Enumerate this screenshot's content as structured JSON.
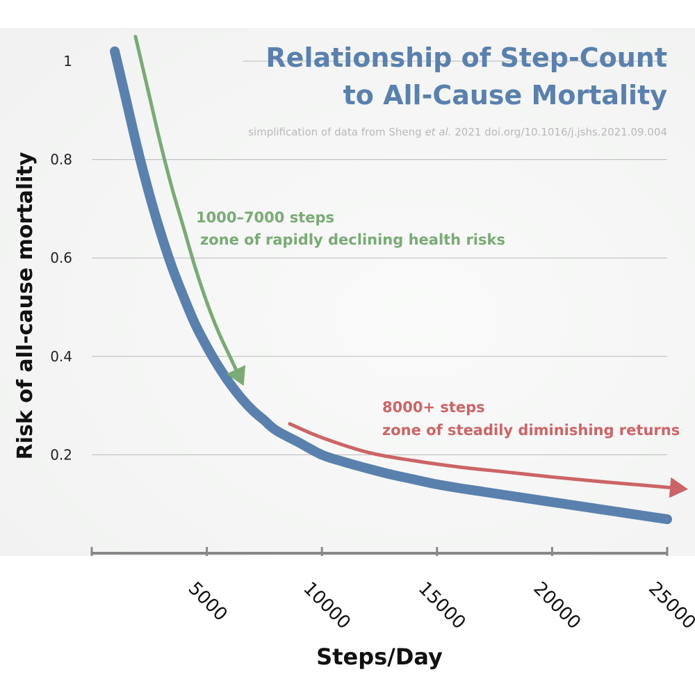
{
  "colors": {
    "background_panel": "#f7f8f7",
    "curve": "#5a80ad",
    "title": "#5a80ad",
    "source_note": "#b8b8b8",
    "green_zone": "#7aaa75",
    "red_zone": "#cc6467",
    "gridline": "#b9b9b9",
    "axis": "#888888",
    "text_dark": "#111111"
  },
  "chart_data": {
    "type": "line",
    "title_lines": [
      "Relationship of Step-Count",
      "to All-Cause Mortality"
    ],
    "subtitle": {
      "before": "simplification of data from Sheng ",
      "italic": "et al.",
      "after": " 2021 doi.org/10.1016/j.jshs.2021.09.004"
    },
    "xlabel": "Steps/Day",
    "ylabel": "Risk of all-cause mortality",
    "x_ticks": [
      5000,
      10000,
      15000,
      20000,
      25000
    ],
    "x_tick_labels": [
      "5000",
      "10000",
      "15000",
      "20000",
      "25000"
    ],
    "y_ticks": [
      0.2,
      0.4,
      0.6,
      0.8,
      1
    ],
    "y_tick_labels": [
      "0.2",
      "0.4",
      "0.6",
      "0.8",
      "1"
    ],
    "xlim": [
      0,
      25000
    ],
    "ylim": [
      0,
      1.05
    ],
    "grid": "horizontal",
    "series": [
      {
        "x": [
          1000,
          1500,
          2000,
          2500,
          3000,
          3500,
          4000,
          4500,
          5000,
          5500,
          6000,
          6500,
          7000,
          7500,
          8000,
          9000,
          10000,
          11000,
          12000,
          13000,
          14000,
          15000,
          16000,
          17000,
          18000,
          19000,
          20000,
          21000,
          22000,
          23000,
          24000,
          25000
        ],
        "y": [
          1.02,
          0.92,
          0.82,
          0.73,
          0.65,
          0.58,
          0.52,
          0.465,
          0.42,
          0.38,
          0.345,
          0.315,
          0.29,
          0.27,
          0.25,
          0.225,
          0.2,
          0.185,
          0.172,
          0.16,
          0.15,
          0.14,
          0.132,
          0.125,
          0.118,
          0.111,
          0.104,
          0.097,
          0.09,
          0.083,
          0.076,
          0.069
        ]
      }
    ],
    "annotations": [
      {
        "id": "rapid-decline",
        "lines": [
          "1000–7000 steps",
          "zone of rapidly declining health risks"
        ],
        "arrow_x": [
          1900,
          2500,
          3000,
          3500,
          4000,
          4500,
          5000,
          5500,
          6000,
          6300
        ],
        "arrow_y": [
          1.05,
          0.93,
          0.83,
          0.74,
          0.66,
          0.58,
          0.51,
          0.45,
          0.4,
          0.37
        ]
      },
      {
        "id": "diminishing-returns",
        "lines": [
          "8000+ steps",
          "zone of steadily diminishing returns"
        ],
        "arrow_x": [
          8600,
          10000,
          12000,
          14000,
          16000,
          18000,
          20000,
          22000,
          24000,
          25200
        ],
        "arrow_y": [
          0.263,
          0.235,
          0.205,
          0.188,
          0.175,
          0.165,
          0.155,
          0.146,
          0.138,
          0.133
        ]
      }
    ]
  }
}
